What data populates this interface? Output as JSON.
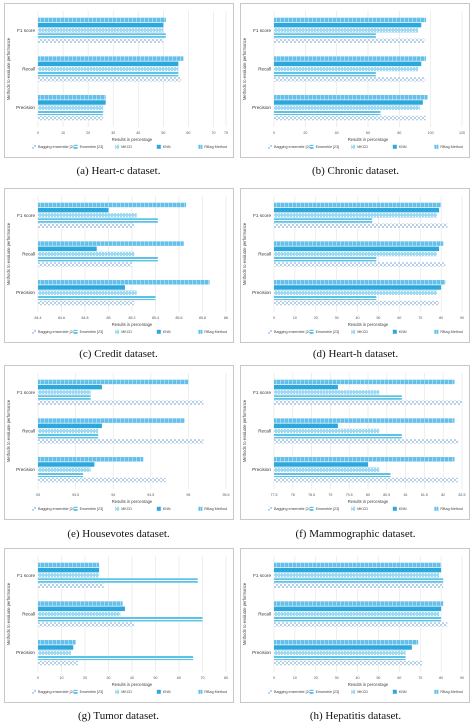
{
  "figure": {
    "captions": [
      "(a) Heart-c dataset.",
      "(b) Chronic dataset.",
      "(c) Credit dataset.",
      "(d) Heart-h dataset.",
      "(e) Housevotes dataset.",
      "(f) Mammographic dataset.",
      "(g) Tumor dataset.",
      "(h) Hepatitis dataset."
    ]
  },
  "colors": {
    "Bagging ensemble [24]": "#b7d0ea",
    "Ensemble [23]": "#5bc3e8",
    "MKCD": "#9fd9f2",
    "KNN": "#2ea8dc",
    "RBag Method": "#64c0ea"
  },
  "chart_data": [
    {
      "type": "bar",
      "orientation": "horizontal",
      "dataset": "Heart-c",
      "xlabel": "Results in percentage",
      "ylabel": "Methods to evaluate performance",
      "categories": [
        "Precision",
        "Recall",
        "F1 score"
      ],
      "xlim": [
        0,
        75
      ],
      "xticks": [
        0,
        10,
        20,
        30,
        40,
        50,
        60,
        70,
        75
      ],
      "legend_position": "bottom",
      "series": [
        {
          "name": "Bagging ensemble [24]",
          "values": [
            26,
            57,
            50
          ]
        },
        {
          "name": "Ensemble [23]",
          "values": [
            26,
            56,
            51
          ]
        },
        {
          "name": "MKCD",
          "values": [
            26,
            56,
            50
          ]
        },
        {
          "name": "KNN",
          "values": [
            27,
            56,
            50
          ]
        },
        {
          "name": "RBag Method",
          "values": [
            27,
            58,
            51
          ]
        }
      ]
    },
    {
      "type": "bar",
      "orientation": "horizontal",
      "dataset": "Chronic",
      "xlabel": "Results in percentage",
      "ylabel": "Methods to evaluate performance",
      "categories": [
        "Precision",
        "Recall",
        "F1 score"
      ],
      "xlim": [
        0,
        120
      ],
      "xticks": [
        0,
        20,
        40,
        60,
        80,
        100,
        120
      ],
      "legend_position": "bottom",
      "series": [
        {
          "name": "Bagging ensemble [24]",
          "values": [
            97,
            96,
            96
          ]
        },
        {
          "name": "Ensemble [23]",
          "values": [
            68,
            65,
            65
          ]
        },
        {
          "name": "MKCD",
          "values": [
            93,
            92,
            92
          ]
        },
        {
          "name": "KNN",
          "values": [
            95,
            94,
            94
          ]
        },
        {
          "name": "RBag Method",
          "values": [
            98,
            97,
            97
          ]
        }
      ]
    },
    {
      "type": "bar",
      "orientation": "horizontal",
      "dataset": "Credit",
      "xlabel": "Results in percentage",
      "ylabel": "Methods to evaluate performance",
      "categories": [
        "Precision",
        "Recall",
        "F1 score"
      ],
      "xlim": [
        84.4,
        86
      ],
      "xticks": [
        84.4,
        84.6,
        84.8,
        85,
        85.2,
        85.4,
        85.6,
        85.8,
        86
      ],
      "legend_position": "bottom",
      "series": [
        {
          "name": "Bagging ensemble [24]",
          "values": [
            85.22,
            85.2,
            85.22
          ]
        },
        {
          "name": "Ensemble [23]",
          "values": [
            85.4,
            85.42,
            85.42
          ]
        },
        {
          "name": "MKCD",
          "values": [
            85.24,
            85.22,
            85.24
          ]
        },
        {
          "name": "KNN",
          "values": [
            85.14,
            84.9,
            85.0
          ]
        },
        {
          "name": "RBag Method",
          "values": [
            85.86,
            85.64,
            85.66
          ]
        }
      ]
    },
    {
      "type": "bar",
      "orientation": "horizontal",
      "dataset": "Heart-h",
      "xlabel": "Results in percentage",
      "ylabel": "Methods to evaluate performance",
      "categories": [
        "Precision",
        "Recall",
        "F1 score"
      ],
      "xlim": [
        0,
        90
      ],
      "xticks": [
        0,
        10,
        20,
        30,
        40,
        50,
        60,
        70,
        80,
        90
      ],
      "legend_position": "bottom",
      "series": [
        {
          "name": "Bagging ensemble [24]",
          "values": [
            79,
            82,
            83
          ]
        },
        {
          "name": "Ensemble [23]",
          "values": [
            49,
            49,
            47
          ]
        },
        {
          "name": "MKCD",
          "values": [
            78,
            78,
            78
          ]
        },
        {
          "name": "KNN",
          "values": [
            80,
            79,
            79
          ]
        },
        {
          "name": "RBag Method",
          "values": [
            82,
            81,
            80
          ]
        }
      ]
    },
    {
      "type": "bar",
      "orientation": "horizontal",
      "dataset": "Housevotes",
      "xlabel": "Results in percentage",
      "ylabel": "Methods to evaluate performance",
      "categories": [
        "Precision",
        "Recall",
        "F1 score"
      ],
      "xlim": [
        93,
        95.5
      ],
      "xticks": [
        93,
        93.5,
        94,
        94.5,
        95,
        95.5
      ],
      "legend_position": "bottom",
      "series": [
        {
          "name": "Bagging ensemble [24]",
          "values": [
            94.7,
            95.2,
            95.2
          ]
        },
        {
          "name": "Ensemble [23]",
          "values": [
            93.6,
            93.8,
            93.7
          ]
        },
        {
          "name": "MKCD",
          "values": [
            93.7,
            93.8,
            93.7
          ]
        },
        {
          "name": "KNN",
          "values": [
            93.75,
            93.85,
            93.85
          ]
        },
        {
          "name": "RBag Method",
          "values": [
            94.4,
            94.95,
            95.0
          ]
        }
      ]
    },
    {
      "type": "bar",
      "orientation": "horizontal",
      "dataset": "Mammographic",
      "xlabel": "Results in percentage",
      "ylabel": "Methods to evaluate performance",
      "categories": [
        "Precision",
        "Recall",
        "F1 score"
      ],
      "xlim": [
        77.5,
        82.5
      ],
      "xticks": [
        77.5,
        78,
        78.5,
        79,
        79.5,
        80,
        80.5,
        81,
        81.5,
        82,
        82.5
      ],
      "legend_position": "bottom",
      "series": [
        {
          "name": "Bagging ensemble [24]",
          "values": [
            82.4,
            82.4,
            82.5
          ]
        },
        {
          "name": "Ensemble [23]",
          "values": [
            80.6,
            80.9,
            80.9
          ]
        },
        {
          "name": "MKCD",
          "values": [
            80.3,
            80.3,
            80.3
          ]
        },
        {
          "name": "KNN",
          "values": [
            80.0,
            79.2,
            79.2
          ]
        },
        {
          "name": "RBag Method",
          "values": [
            82.3,
            82.3,
            82.3
          ]
        }
      ]
    },
    {
      "type": "bar",
      "orientation": "horizontal",
      "dataset": "Tumor",
      "xlabel": "Results in percentage",
      "ylabel": "Methods to evaluate performance",
      "categories": [
        "Precision",
        "Recall",
        "F1 score"
      ],
      "xlim": [
        0,
        80
      ],
      "xticks": [
        0,
        10,
        20,
        30,
        40,
        50,
        60,
        70,
        80
      ],
      "legend_position": "bottom",
      "series": [
        {
          "name": "Bagging ensemble [24]",
          "values": [
            17,
            41,
            28
          ]
        },
        {
          "name": "Ensemble [23]",
          "values": [
            66,
            70,
            68
          ]
        },
        {
          "name": "MKCD",
          "values": [
            14,
            35,
            26
          ]
        },
        {
          "name": "KNN",
          "values": [
            15,
            37,
            26
          ]
        },
        {
          "name": "RBag Method",
          "values": [
            16,
            36,
            26
          ]
        }
      ]
    },
    {
      "type": "bar",
      "orientation": "horizontal",
      "dataset": "Hepatitis",
      "xlabel": "Results in percentage",
      "ylabel": "Methods to evaluate performance",
      "categories": [
        "Precision",
        "Recall",
        "F1 score"
      ],
      "xlim": [
        0,
        90
      ],
      "xticks": [
        0,
        10,
        20,
        30,
        40,
        50,
        60,
        70,
        80,
        90
      ],
      "legend_position": "bottom",
      "series": [
        {
          "name": "Bagging ensemble [24]",
          "values": [
            71,
            83,
            81
          ]
        },
        {
          "name": "Ensemble [23]",
          "values": [
            63,
            80,
            81
          ]
        },
        {
          "name": "MKCD",
          "values": [
            63,
            79,
            79
          ]
        },
        {
          "name": "KNN",
          "values": [
            66,
            80,
            80
          ]
        },
        {
          "name": "RBag Method",
          "values": [
            69,
            81,
            80
          ]
        }
      ]
    }
  ]
}
